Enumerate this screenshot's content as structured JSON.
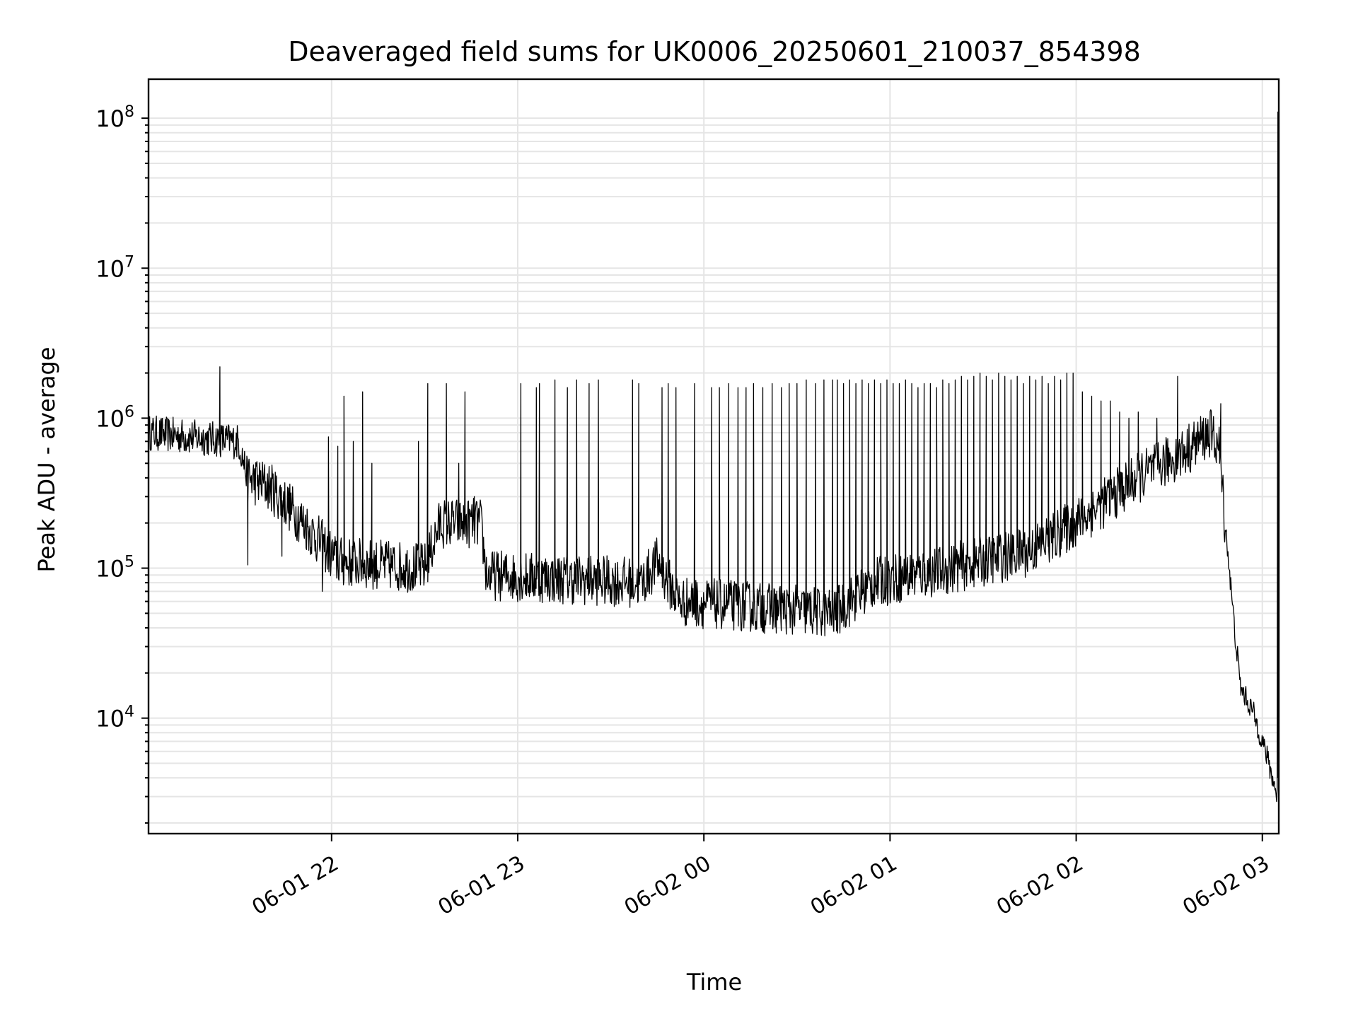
{
  "chart_data": {
    "type": "line",
    "title": "Deaveraged field sums for UK0006_20250601_210037_854398",
    "xlabel": "Time",
    "ylabel": "Peak ADU - average",
    "x_units": "minutes after 06-01 21:00",
    "xlim": [
      1,
      365.3
    ],
    "ylim_log10": [
      3.23,
      8.26
    ],
    "yscale": "log",
    "grid": "major and minor, light gray",
    "legend": "none",
    "line_color": "#000000",
    "grid_color": "#e5e5e5",
    "x_ticks": [
      {
        "minute": 60,
        "label": "06-01 22"
      },
      {
        "minute": 120,
        "label": "06-01 23"
      },
      {
        "minute": 180,
        "label": "06-02 00"
      },
      {
        "minute": 240,
        "label": "06-02 01"
      },
      {
        "minute": 300,
        "label": "06-02 02"
      },
      {
        "minute": 360,
        "label": "06-02 03"
      }
    ],
    "y_ticks": [
      {
        "exp": 4,
        "base": "10",
        "sup": "4"
      },
      {
        "exp": 5,
        "base": "10",
        "sup": "5"
      },
      {
        "exp": 6,
        "base": "10",
        "sup": "6"
      },
      {
        "exp": 7,
        "base": "10",
        "sup": "7"
      },
      {
        "exp": 8,
        "base": "10",
        "sup": "8"
      }
    ],
    "baseline": [
      [
        1,
        800000
      ],
      [
        30,
        700000
      ],
      [
        33,
        400000
      ],
      [
        40,
        350000
      ],
      [
        47,
        250000
      ],
      [
        55,
        160000
      ],
      [
        62,
        110000
      ],
      [
        90,
        100000
      ],
      [
        95,
        200000
      ],
      [
        108,
        200000
      ],
      [
        110,
        90000
      ],
      [
        160,
        80000
      ],
      [
        165,
        110000
      ],
      [
        172,
        60000
      ],
      [
        222,
        50000
      ],
      [
        235,
        80000
      ],
      [
        260,
        100000
      ],
      [
        285,
        130000
      ],
      [
        300,
        200000
      ],
      [
        320,
        400000
      ],
      [
        335,
        600000
      ],
      [
        343,
        800000
      ],
      [
        346,
        650000
      ],
      [
        348,
        200000
      ],
      [
        349,
        120000
      ],
      [
        351,
        40000
      ],
      [
        353,
        16000
      ],
      [
        357,
        11000
      ],
      [
        361,
        6000
      ],
      [
        364,
        3500
      ],
      [
        364.8,
        3000
      ]
    ],
    "spikes": [
      [
        24,
        2200000
      ],
      [
        33,
        105000
      ],
      [
        44,
        120000
      ],
      [
        57,
        70000
      ],
      [
        59,
        750000
      ],
      [
        62,
        650000
      ],
      [
        64,
        1400000
      ],
      [
        67,
        700000
      ],
      [
        70,
        1500000
      ],
      [
        73,
        500000
      ],
      [
        88,
        700000
      ],
      [
        91,
        1700000
      ],
      [
        97,
        1700000
      ],
      [
        101,
        500000
      ],
      [
        103,
        1500000
      ],
      [
        106,
        300000
      ],
      [
        121,
        1700000
      ],
      [
        126,
        1600000
      ],
      [
        127,
        1700000
      ],
      [
        132,
        1800000
      ],
      [
        136,
        1600000
      ],
      [
        139,
        1800000
      ],
      [
        143,
        1700000
      ],
      [
        146,
        1800000
      ],
      [
        157,
        1800000
      ],
      [
        159,
        1700000
      ],
      [
        166.5,
        1600000
      ],
      [
        168.5,
        1700000
      ],
      [
        171,
        1600000
      ],
      [
        177,
        1700000
      ],
      [
        182.5,
        1600000
      ],
      [
        185,
        1600000
      ],
      [
        188,
        1700000
      ],
      [
        191,
        1600000
      ],
      [
        193.6,
        1600000
      ],
      [
        196,
        1700000
      ],
      [
        199,
        1600000
      ],
      [
        202,
        1700000
      ],
      [
        205,
        1600000
      ],
      [
        207.5,
        1700000
      ],
      [
        210,
        1700000
      ],
      [
        213,
        1800000
      ],
      [
        216,
        1700000
      ],
      [
        218.7,
        1800000
      ],
      [
        221.5,
        1800000
      ],
      [
        223,
        1800000
      ],
      [
        225,
        1700000
      ],
      [
        227,
        1800000
      ],
      [
        229,
        1700000
      ],
      [
        231,
        1800000
      ],
      [
        233,
        1700000
      ],
      [
        235,
        1800000
      ],
      [
        237,
        1700000
      ],
      [
        239,
        1800000
      ],
      [
        241,
        1700000
      ],
      [
        243,
        1700000
      ],
      [
        245,
        1800000
      ],
      [
        247,
        1700000
      ],
      [
        249,
        1600000
      ],
      [
        251,
        1700000
      ],
      [
        253,
        1700000
      ],
      [
        255,
        1600000
      ],
      [
        257,
        1800000
      ],
      [
        259,
        1700000
      ],
      [
        261,
        1800000
      ],
      [
        263,
        1900000
      ],
      [
        265,
        1800000
      ],
      [
        267,
        1900000
      ],
      [
        269,
        2000000
      ],
      [
        271,
        1900000
      ],
      [
        273,
        1800000
      ],
      [
        275,
        2000000
      ],
      [
        277,
        1900000
      ],
      [
        279,
        1800000
      ],
      [
        281,
        1900000
      ],
      [
        283,
        1700000
      ],
      [
        285,
        1900000
      ],
      [
        287,
        1800000
      ],
      [
        289,
        1900000
      ],
      [
        291,
        1700000
      ],
      [
        293,
        1900000
      ],
      [
        295,
        1800000
      ],
      [
        297,
        2000000
      ],
      [
        299,
        2000000
      ],
      [
        302,
        1500000
      ],
      [
        305,
        1400000
      ],
      [
        308,
        1300000
      ],
      [
        311,
        1300000
      ],
      [
        314,
        1100000
      ],
      [
        317,
        1000000
      ],
      [
        320,
        1100000
      ],
      [
        326,
        1000000
      ],
      [
        332.7,
        1900000
      ],
      [
        346.6,
        1250000
      ],
      [
        365.0,
        110000000
      ]
    ]
  }
}
